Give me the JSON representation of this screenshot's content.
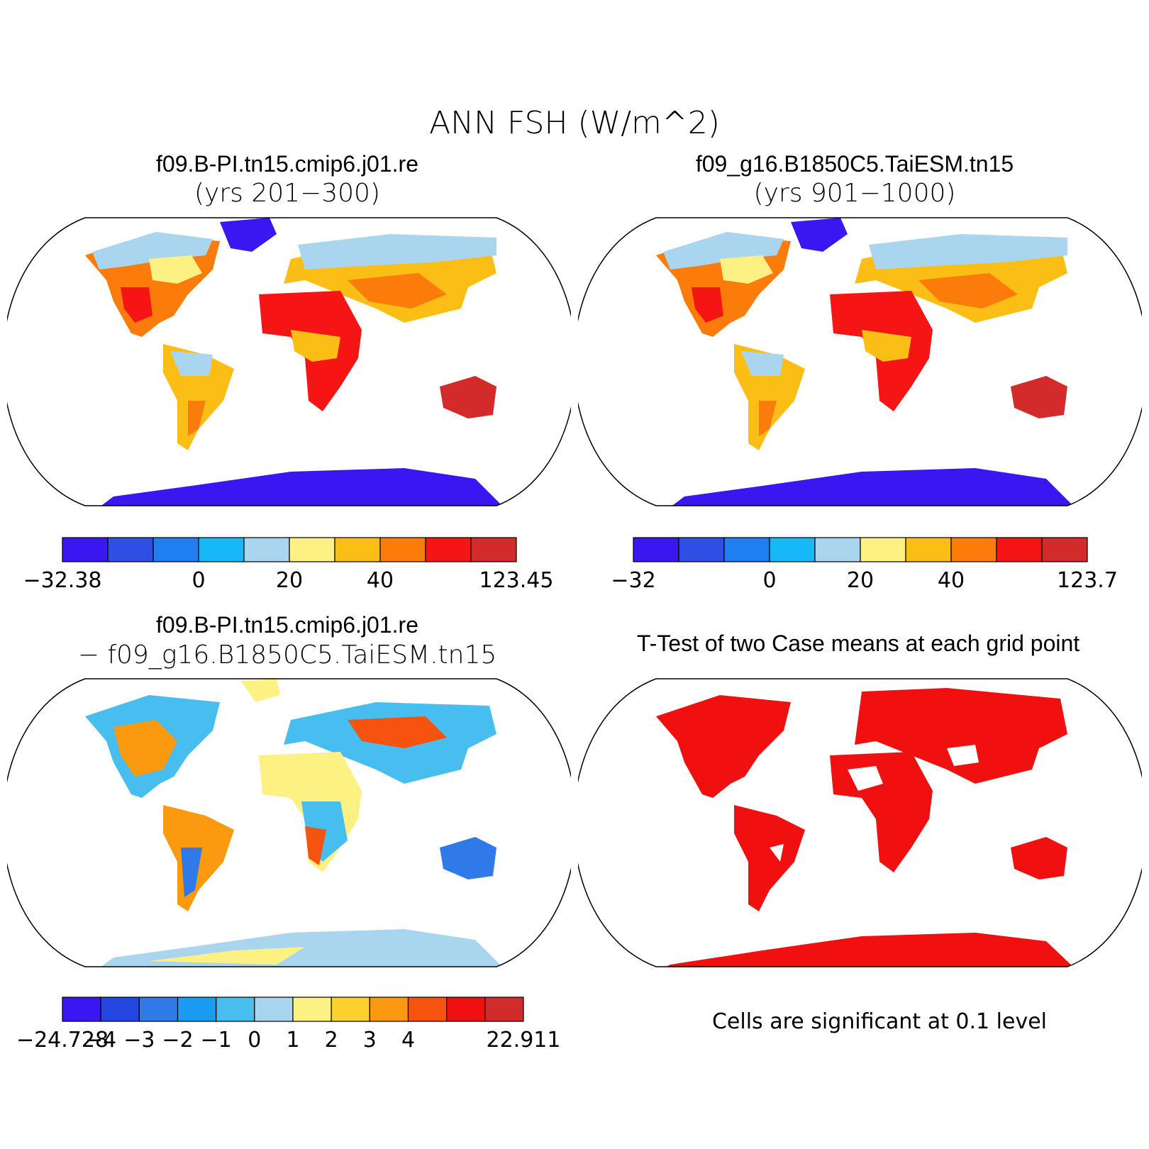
{
  "figure": {
    "title": "ANN FSH (W/m^2)"
  },
  "panels": [
    {
      "id": "case1",
      "title": "f09.B-PI.tn15.cmip6.j01.re",
      "subtitle": "(yrs 201−300)",
      "colorbar": {
        "colors": [
          "#3a16f0",
          "#2f4ee3",
          "#1f7ff0",
          "#16b9f5",
          "#a9d6ee",
          "#fdf183",
          "#fbbe15",
          "#fb7c0a",
          "#f51515",
          "#d32b2b"
        ],
        "tick_labels": [
          "−32.38",
          "0",
          "20",
          "40",
          "123.45"
        ],
        "tick_edges": [
          0,
          3,
          5,
          7,
          10
        ]
      }
    },
    {
      "id": "case2",
      "title": "f09_g16.B1850C5.TaiESM.tn15",
      "subtitle": "(yrs 901−1000)",
      "colorbar": {
        "colors": [
          "#3a16f0",
          "#2f4ee3",
          "#1f7ff0",
          "#16b9f5",
          "#a9d6ee",
          "#fdf183",
          "#fbbe15",
          "#fb7c0a",
          "#f51515",
          "#d32b2b"
        ],
        "tick_labels": [
          "−32",
          "0",
          "20",
          "40",
          "123.7"
        ],
        "tick_edges": [
          0,
          3,
          5,
          7,
          10
        ]
      }
    },
    {
      "id": "difference",
      "title": "f09.B-PI.tn15.cmip6.j01.re",
      "subtitle": "− f09_g16.B1850C5.TaiESM.tn15",
      "colorbar": {
        "colors": [
          "#3a16f0",
          "#2447e3",
          "#2f7ae8",
          "#1a9cf3",
          "#47bdf0",
          "#a9d6ee",
          "#fdf183",
          "#fcd12d",
          "#fb9a0e",
          "#f5530f",
          "#f01010",
          "#d32b2b"
        ],
        "tick_labels": [
          "−24.728",
          "−4",
          "−3",
          "−2",
          "−1",
          "0",
          "1",
          "2",
          "3",
          "4",
          "22.911"
        ],
        "tick_edges": [
          0,
          1,
          2,
          3,
          4,
          5,
          6,
          7,
          8,
          9,
          12
        ]
      }
    },
    {
      "id": "ttest",
      "title": "T-Test of two Case means at each grid point",
      "note": "Cells are significant at 0.1 level"
    }
  ]
}
